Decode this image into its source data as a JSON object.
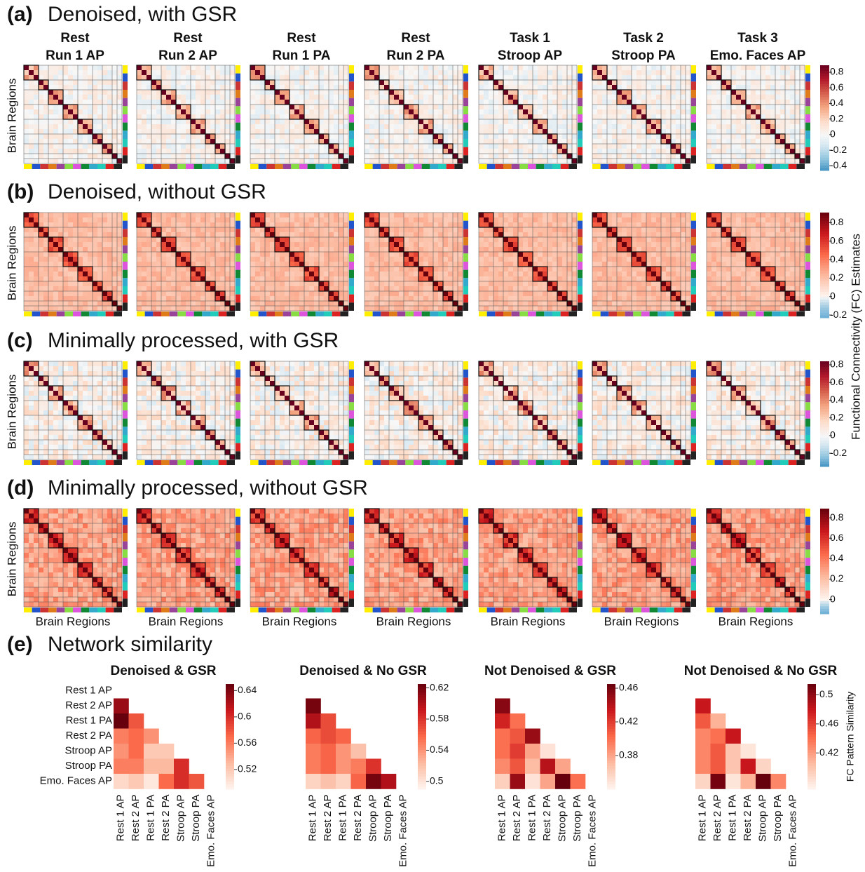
{
  "column_headers": [
    [
      "Rest",
      "Run 1 AP"
    ],
    [
      "Rest",
      "Run 2 AP"
    ],
    [
      "Rest",
      "Run 1 PA"
    ],
    [
      "Rest",
      "Run 2 PA"
    ],
    [
      "Task 1",
      "Stroop AP"
    ],
    [
      "Task 2",
      "Stroop PA"
    ],
    [
      "Task 3",
      "Emo. Faces AP"
    ]
  ],
  "y_label": "Brain Regions",
  "x_label": "Brain Regions",
  "colorbar_label": "Functional Connectivity (FC) Estimates",
  "panels": [
    {
      "label": "(a)",
      "title": "Denoised, with GSR",
      "colormap": "RdBu_r",
      "ylim": [
        -0.46,
        0.89
      ],
      "yticks": [
        0.8,
        0.6,
        0.4,
        0.2,
        0,
        -0.2,
        -0.4
      ]
    },
    {
      "label": "(b)",
      "title": "Denoised, without GSR",
      "colormap": "Reds",
      "ylim": [
        -0.23,
        0.91
      ],
      "yticks": [
        0.8,
        0.6,
        0.4,
        0.2,
        0,
        -0.2
      ]
    },
    {
      "label": "(c)",
      "title": "Minimally processed, with GSR",
      "colormap": "RdBu_r",
      "ylim": [
        -0.35,
        0.84
      ],
      "yticks": [
        0.8,
        0.6,
        0.4,
        0.2,
        0,
        -0.2
      ]
    },
    {
      "label": "(d)",
      "title": "Minimally processed, without GSR",
      "colormap": "Reds",
      "ylim": [
        -0.14,
        0.89
      ],
      "yticks": [
        0.8,
        0.6,
        0.4,
        0.2,
        0
      ]
    }
  ],
  "panel_e": {
    "label": "(e)",
    "title": "Network similarity"
  },
  "chart_data": [
    {
      "type": "heatmap",
      "title": "Denoised & GSR",
      "colormap": "Reds",
      "rows": [
        "Rest 1 AP",
        "Rest 2 AP",
        "Rest 1 PA",
        "Rest 2 PA",
        "Stroop AP",
        "Stroop PA",
        "Emo. Faces AP"
      ],
      "columns": [
        "Rest 1 AP",
        "Rest 2 AP",
        "Rest 1 PA",
        "Rest 2 PA",
        "Stroop AP",
        "Stroop PA",
        "Emo. Faces AP"
      ],
      "values": [
        [],
        [
          0.63
        ],
        [
          0.65,
          0.58
        ],
        [
          0.56,
          0.57,
          0.55
        ],
        [
          0.55,
          0.57,
          0.52,
          0.52
        ],
        [
          0.56,
          0.56,
          0.53,
          0.53,
          0.6
        ],
        [
          0.51,
          0.52,
          0.5,
          0.57,
          0.6,
          0.58
        ]
      ],
      "ylim": [
        0.49,
        0.65
      ],
      "yticks": [
        0.64,
        0.6,
        0.56,
        0.52
      ]
    },
    {
      "type": "heatmap",
      "title": "Denoised & No GSR",
      "colormap": "Reds",
      "columns": [
        "Rest 1 AP",
        "Rest 2 AP",
        "Rest 1 PA",
        "Rest 2 PA",
        "Stroop AP",
        "Stroop PA",
        "Emo. Faces AP"
      ],
      "values": [
        [],
        [
          0.62
        ],
        [
          0.6,
          0.57
        ],
        [
          0.56,
          0.57,
          0.56
        ],
        [
          0.55,
          0.56,
          0.54,
          0.52
        ],
        [
          0.55,
          0.56,
          0.54,
          0.55,
          0.58
        ],
        [
          0.51,
          0.52,
          0.51,
          0.56,
          0.62,
          0.6
        ]
      ],
      "ylim": [
        0.49,
        0.625
      ],
      "yticks": [
        0.62,
        0.58,
        0.54,
        0.5
      ]
    },
    {
      "type": "heatmap",
      "title": "Not Denoised & GSR",
      "colormap": "Reds",
      "columns": [
        "Rest 1 AP",
        "Rest 2 AP",
        "Rest 1 PA",
        "Rest 2 PA",
        "Stroop AP",
        "Stroop PA",
        "Emo. Faces AP"
      ],
      "values": [
        [],
        [
          0.455
        ],
        [
          0.43,
          0.4
        ],
        [
          0.4,
          0.41,
          0.45
        ],
        [
          0.4,
          0.42,
          0.38,
          0.35
        ],
        [
          0.39,
          0.41,
          0.37,
          0.44,
          0.38
        ],
        [
          0.36,
          0.45,
          0.35,
          0.38,
          0.47,
          0.4
        ]
      ],
      "ylim": [
        0.34,
        0.465
      ],
      "yticks": [
        0.46,
        0.42,
        0.38
      ]
    },
    {
      "type": "heatmap",
      "title": "Not Denoised & No GSR",
      "colormap": "Reds",
      "colorbar_label": "FC Pattern Similarity",
      "columns": [
        "Rest 1 AP",
        "Rest 2 AP",
        "Rest 1 PA",
        "Rest 2 PA",
        "Stroop AP",
        "Stroop PA",
        "Emo. Faces AP"
      ],
      "values": [
        [],
        [
          0.48
        ],
        [
          0.45,
          0.41
        ],
        [
          0.43,
          0.44,
          0.48
        ],
        [
          0.43,
          0.45,
          0.4,
          0.38
        ],
        [
          0.43,
          0.45,
          0.4,
          0.48,
          0.39
        ],
        [
          0.39,
          0.51,
          0.38,
          0.41,
          0.52,
          0.43
        ]
      ],
      "ylim": [
        0.37,
        0.515
      ],
      "yticks": [
        0.5,
        0.46,
        0.42
      ]
    }
  ]
}
